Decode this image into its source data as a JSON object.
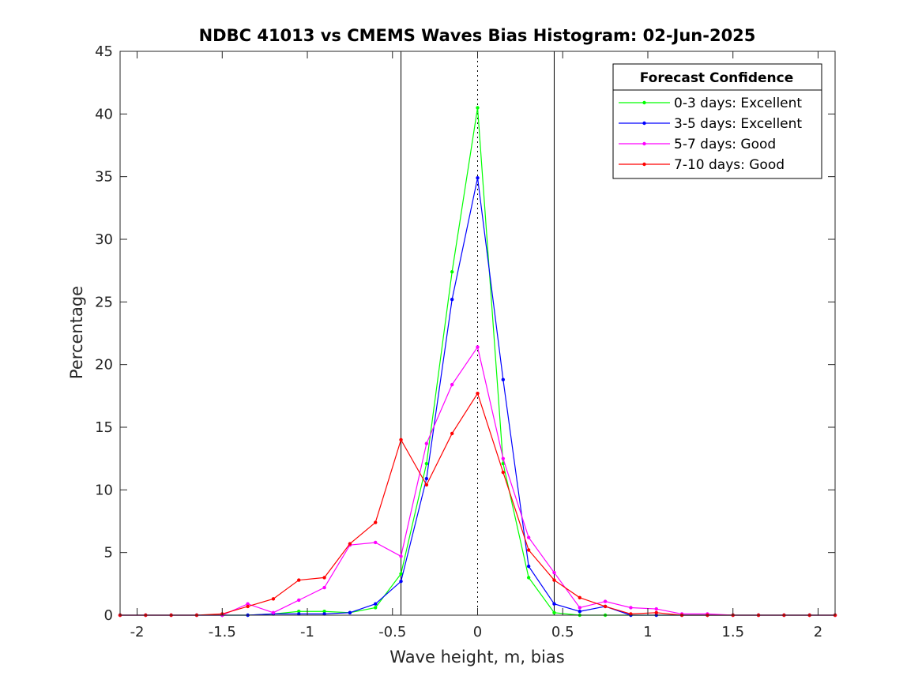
{
  "chart_data": {
    "type": "line",
    "title": "NDBC 41013 vs CMEMS Waves Bias Histogram: 02-Jun-2025",
    "xlabel": "Wave height, m, bias",
    "ylabel": "Percentage",
    "xlim": [
      -2.1,
      2.1
    ],
    "ylim": [
      0,
      45
    ],
    "xticks": [
      -2,
      -1.5,
      -1,
      -0.5,
      0,
      0.5,
      1,
      1.5,
      2
    ],
    "xtick_labels": [
      "-2",
      "-1.5",
      "-1",
      "-0.5",
      "0",
      "0.5",
      "1",
      "1.5",
      "2"
    ],
    "yticks": [
      0,
      5,
      10,
      15,
      20,
      25,
      30,
      35,
      40,
      45
    ],
    "ytick_labels": [
      "0",
      "5",
      "10",
      "15",
      "20",
      "25",
      "30",
      "35",
      "40",
      "45"
    ],
    "grid": false,
    "reference_lines": {
      "solid_x": [
        -0.45,
        0.45
      ],
      "dotted_x": [
        0
      ]
    },
    "legend": {
      "title": "Forecast Confidence",
      "placement": "top-right"
    },
    "x": [
      -2.1,
      -1.95,
      -1.8,
      -1.65,
      -1.5,
      -1.35,
      -1.2,
      -1.05,
      -0.9,
      -0.75,
      -0.6,
      -0.45,
      -0.3,
      -0.15,
      0,
      0.15,
      0.3,
      0.45,
      0.6,
      0.75,
      0.9,
      1.05,
      1.2,
      1.35,
      1.5,
      1.65,
      1.8,
      1.95,
      2.1
    ],
    "series": [
      {
        "name": "0-3 days: Excellent",
        "color": "#00ff00",
        "values": [
          0,
          0,
          0,
          0,
          0,
          0,
          0.1,
          0.3,
          0.3,
          0.2,
          0.6,
          3.3,
          12.1,
          27.4,
          40.5,
          12.1,
          3.0,
          0.2,
          0,
          0,
          0,
          0,
          0,
          0,
          0,
          0,
          0,
          0,
          0
        ]
      },
      {
        "name": "3-5 days: Excellent",
        "color": "#0000ff",
        "values": [
          0,
          0,
          0,
          0,
          0,
          0,
          0.1,
          0.1,
          0.1,
          0.2,
          0.9,
          2.7,
          10.9,
          25.2,
          34.9,
          18.8,
          3.9,
          0.9,
          0.3,
          0.7,
          0,
          0,
          0,
          0,
          0,
          0,
          0,
          0,
          0
        ]
      },
      {
        "name": "5-7 days: Good",
        "color": "#ff00ff",
        "values": [
          0,
          0,
          0,
          0,
          0,
          0.9,
          0.2,
          1.2,
          2.2,
          5.6,
          5.8,
          4.7,
          13.7,
          18.4,
          21.4,
          12.5,
          6.2,
          3.4,
          0.6,
          1.1,
          0.6,
          0.5,
          0.1,
          0.1,
          0,
          0,
          0,
          0,
          0
        ]
      },
      {
        "name": "7-10 days: Good",
        "color": "#ff0000",
        "values": [
          0,
          0,
          0,
          0,
          0.1,
          0.7,
          1.3,
          2.8,
          3.0,
          5.7,
          7.4,
          14.0,
          10.4,
          14.5,
          17.7,
          11.4,
          5.2,
          2.8,
          1.4,
          0.7,
          0.1,
          0.2,
          0,
          0,
          0,
          0,
          0,
          0,
          0
        ]
      }
    ]
  }
}
